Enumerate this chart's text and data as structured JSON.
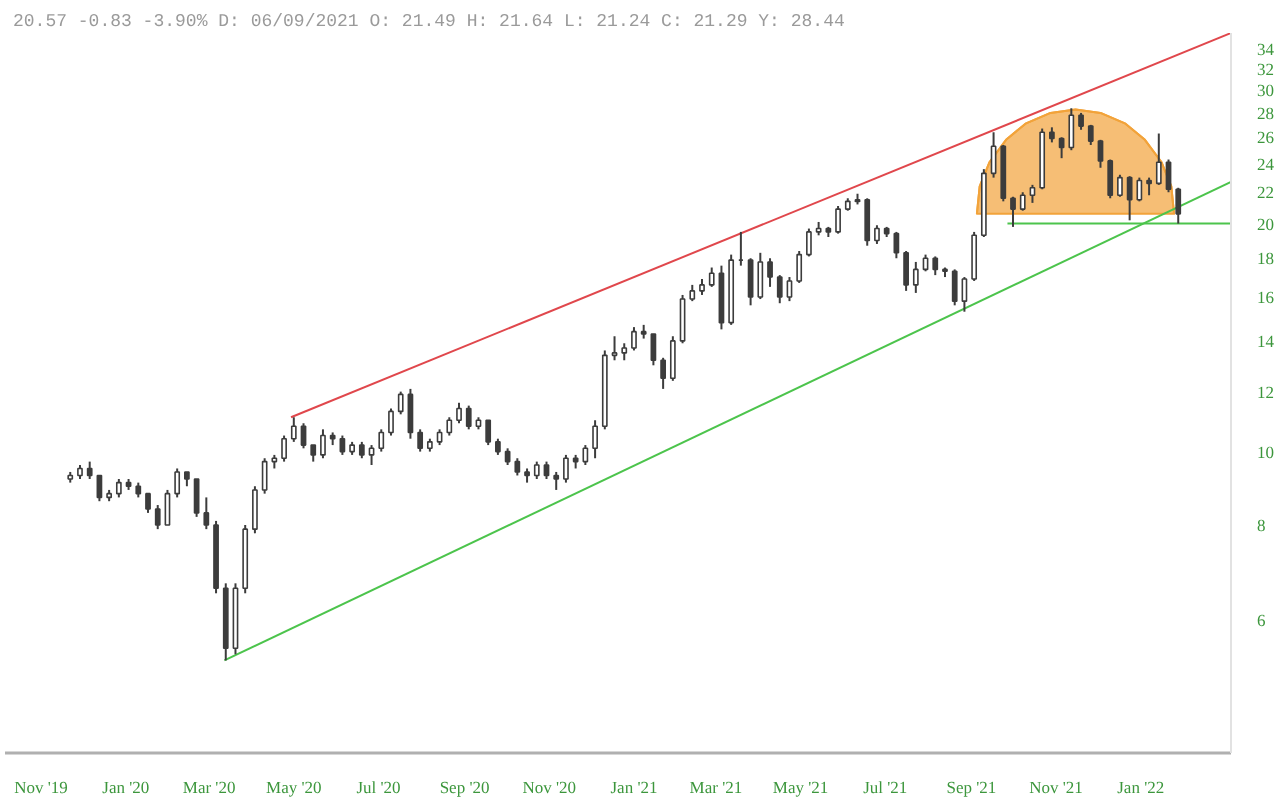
{
  "chart_data": {
    "type": "candlestick",
    "title": "20.57 -0.83 -3.90% D: 06/09/2021 O: 21.49 H: 21.64 L: 21.24 C: 21.29 Y: 28.44",
    "color": "#3c3c3c",
    "x": [
      "2019-11-22",
      "2019-11-29",
      "2019-12-06",
      "2019-12-13",
      "2019-12-20",
      "2019-12-27",
      "2020-01-03",
      "2020-01-10",
      "2020-01-17",
      "2020-01-24",
      "2020-01-31",
      "2020-02-07",
      "2020-02-14",
      "2020-02-21",
      "2020-02-28",
      "2020-03-06",
      "2020-03-13",
      "2020-03-20",
      "2020-03-27",
      "2020-04-03",
      "2020-04-10",
      "2020-04-17",
      "2020-04-24",
      "2020-05-01",
      "2020-05-08",
      "2020-05-15",
      "2020-05-22",
      "2020-05-29",
      "2020-06-05",
      "2020-06-12",
      "2020-06-19",
      "2020-06-26",
      "2020-07-03",
      "2020-07-10",
      "2020-07-17",
      "2020-07-24",
      "2020-07-31",
      "2020-08-07",
      "2020-08-14",
      "2020-08-21",
      "2020-08-28",
      "2020-09-04",
      "2020-09-11",
      "2020-09-18",
      "2020-09-25",
      "2020-10-02",
      "2020-10-09",
      "2020-10-16",
      "2020-10-23",
      "2020-10-30",
      "2020-11-06",
      "2020-11-13",
      "2020-11-20",
      "2020-11-27",
      "2020-12-04",
      "2020-12-11",
      "2020-12-18",
      "2020-12-25",
      "2021-01-01",
      "2021-01-08",
      "2021-01-15",
      "2021-01-22",
      "2021-01-29",
      "2021-02-05",
      "2021-02-12",
      "2021-02-19",
      "2021-02-26",
      "2021-03-05",
      "2021-03-12",
      "2021-03-19",
      "2021-03-26",
      "2021-04-02",
      "2021-04-09",
      "2021-04-16",
      "2021-04-23",
      "2021-04-30",
      "2021-05-07",
      "2021-05-14",
      "2021-05-21",
      "2021-05-28",
      "2021-06-04",
      "2021-06-11",
      "2021-06-18",
      "2021-06-25",
      "2021-07-02",
      "2021-07-09",
      "2021-07-16",
      "2021-07-23",
      "2021-07-30",
      "2021-08-06",
      "2021-08-13",
      "2021-08-20",
      "2021-08-27",
      "2021-09-03",
      "2021-09-10",
      "2021-09-17",
      "2021-09-24",
      "2021-10-01",
      "2021-10-08",
      "2021-10-15",
      "2021-10-22",
      "2021-10-29",
      "2021-11-05",
      "2021-11-12",
      "2021-11-19",
      "2021-11-26",
      "2021-12-03",
      "2021-12-10",
      "2021-12-17",
      "2021-12-24",
      "2021-12-31",
      "2022-01-07",
      "2022-01-14",
      "2022-01-21",
      "2022-01-28"
    ],
    "ohlc": [
      [
        9.2,
        9.4,
        9.1,
        9.3
      ],
      [
        9.3,
        9.6,
        9.2,
        9.5
      ],
      [
        9.5,
        9.7,
        9.2,
        9.3
      ],
      [
        9.3,
        9.3,
        8.6,
        8.7
      ],
      [
        8.7,
        8.9,
        8.6,
        8.8
      ],
      [
        8.8,
        9.2,
        8.7,
        9.1
      ],
      [
        9.1,
        9.2,
        8.9,
        9.0
      ],
      [
        9.0,
        9.1,
        8.7,
        8.8
      ],
      [
        8.8,
        8.8,
        8.3,
        8.4
      ],
      [
        8.4,
        8.5,
        7.9,
        8.0
      ],
      [
        8.0,
        8.9,
        8.0,
        8.8
      ],
      [
        8.8,
        9.5,
        8.7,
        9.4
      ],
      [
        9.4,
        9.4,
        9.0,
        9.2
      ],
      [
        9.2,
        9.2,
        8.2,
        8.3
      ],
      [
        8.3,
        8.7,
        7.9,
        8.0
      ],
      [
        8.0,
        8.1,
        6.5,
        6.6
      ],
      [
        6.6,
        6.7,
        5.3,
        5.5
      ],
      [
        5.5,
        6.7,
        5.4,
        6.6
      ],
      [
        6.6,
        8.0,
        6.5,
        7.9
      ],
      [
        7.9,
        9.0,
        7.8,
        8.9
      ],
      [
        8.9,
        9.8,
        8.8,
        9.7
      ],
      [
        9.7,
        9.9,
        9.5,
        9.8
      ],
      [
        9.8,
        10.5,
        9.7,
        10.4
      ],
      [
        10.4,
        11.1,
        10.3,
        10.8
      ],
      [
        10.8,
        10.9,
        10.1,
        10.2
      ],
      [
        10.2,
        10.2,
        9.7,
        9.9
      ],
      [
        9.9,
        10.7,
        9.8,
        10.5
      ],
      [
        10.5,
        10.6,
        10.2,
        10.4
      ],
      [
        10.4,
        10.5,
        9.9,
        10.0
      ],
      [
        10.0,
        10.3,
        9.9,
        10.2
      ],
      [
        10.2,
        10.3,
        9.8,
        9.9
      ],
      [
        9.9,
        10.2,
        9.6,
        10.1
      ],
      [
        10.1,
        10.7,
        10.0,
        10.6
      ],
      [
        10.6,
        11.4,
        10.5,
        11.3
      ],
      [
        11.3,
        12.0,
        11.2,
        11.9
      ],
      [
        11.9,
        12.1,
        10.4,
        10.6
      ],
      [
        10.6,
        10.7,
        10.0,
        10.1
      ],
      [
        10.1,
        10.4,
        10.0,
        10.3
      ],
      [
        10.3,
        10.7,
        10.2,
        10.6
      ],
      [
        10.6,
        11.1,
        10.5,
        11.0
      ],
      [
        11.0,
        11.6,
        10.9,
        11.4
      ],
      [
        11.4,
        11.5,
        10.7,
        10.8
      ],
      [
        10.8,
        11.1,
        10.7,
        11.0
      ],
      [
        11.0,
        11.0,
        10.2,
        10.3
      ],
      [
        10.3,
        10.4,
        9.9,
        10.0
      ],
      [
        10.0,
        10.1,
        9.6,
        9.7
      ],
      [
        9.7,
        9.8,
        9.3,
        9.4
      ],
      [
        9.4,
        9.5,
        9.1,
        9.3
      ],
      [
        9.3,
        9.7,
        9.2,
        9.6
      ],
      [
        9.6,
        9.7,
        9.2,
        9.3
      ],
      [
        9.3,
        9.4,
        8.9,
        9.2
      ],
      [
        9.2,
        9.9,
        9.1,
        9.8
      ],
      [
        9.8,
        9.9,
        9.5,
        9.7
      ],
      [
        9.7,
        10.2,
        9.6,
        10.1
      ],
      [
        10.1,
        11.0,
        9.8,
        10.8
      ],
      [
        10.8,
        13.6,
        10.7,
        13.4
      ],
      [
        13.4,
        14.2,
        13.2,
        13.5
      ],
      [
        13.5,
        13.9,
        13.2,
        13.7
      ],
      [
        13.7,
        14.6,
        13.6,
        14.4
      ],
      [
        14.4,
        14.7,
        14.1,
        14.3
      ],
      [
        14.3,
        14.3,
        13.0,
        13.2
      ],
      [
        13.2,
        13.3,
        12.1,
        12.5
      ],
      [
        12.5,
        14.2,
        12.4,
        14.0
      ],
      [
        14.0,
        16.1,
        13.9,
        15.9
      ],
      [
        15.9,
        16.6,
        15.8,
        16.3
      ],
      [
        16.3,
        16.9,
        16.1,
        16.6
      ],
      [
        16.6,
        17.5,
        16.5,
        17.2
      ],
      [
        17.2,
        17.6,
        14.5,
        14.8
      ],
      [
        14.8,
        18.2,
        14.7,
        17.9
      ],
      [
        17.9,
        19.5,
        17.6,
        17.9
      ],
      [
        17.9,
        18.0,
        15.6,
        16.0
      ],
      [
        16.0,
        18.3,
        15.9,
        17.8
      ],
      [
        17.8,
        18.0,
        16.5,
        17.0
      ],
      [
        17.0,
        17.1,
        15.7,
        16.0
      ],
      [
        16.0,
        17.0,
        15.8,
        16.8
      ],
      [
        16.8,
        18.4,
        16.7,
        18.2
      ],
      [
        18.2,
        19.7,
        18.1,
        19.5
      ],
      [
        19.5,
        20.1,
        19.3,
        19.7
      ],
      [
        19.7,
        19.8,
        19.2,
        19.5
      ],
      [
        19.5,
        21.1,
        19.4,
        20.9
      ],
      [
        20.9,
        21.6,
        20.8,
        21.4
      ],
      [
        21.4,
        21.9,
        21.2,
        21.5
      ],
      [
        21.5,
        21.6,
        18.7,
        19.0
      ],
      [
        19.0,
        19.9,
        18.8,
        19.7
      ],
      [
        19.7,
        19.8,
        19.2,
        19.4
      ],
      [
        19.4,
        19.5,
        18.0,
        18.3
      ],
      [
        18.3,
        18.4,
        16.3,
        16.6
      ],
      [
        16.6,
        17.8,
        16.2,
        17.4
      ],
      [
        17.4,
        18.2,
        17.3,
        18.0
      ],
      [
        18.0,
        18.1,
        17.1,
        17.4
      ],
      [
        17.4,
        17.5,
        17.0,
        17.3
      ],
      [
        17.3,
        17.4,
        15.6,
        15.8
      ],
      [
        15.8,
        17.0,
        15.3,
        16.9
      ],
      [
        16.9,
        19.5,
        16.8,
        19.3
      ],
      [
        19.3,
        23.6,
        19.2,
        23.3
      ],
      [
        23.3,
        26.4,
        23.0,
        25.3
      ],
      [
        25.3,
        25.4,
        21.4,
        21.6
      ],
      [
        21.6,
        21.7,
        19.8,
        20.9
      ],
      [
        20.9,
        22.0,
        20.8,
        21.8
      ],
      [
        21.8,
        22.5,
        21.3,
        22.3
      ],
      [
        22.3,
        26.7,
        22.2,
        26.4
      ],
      [
        26.4,
        26.8,
        25.6,
        25.9
      ],
      [
        25.9,
        26.0,
        24.4,
        25.2
      ],
      [
        25.2,
        28.4,
        25.0,
        27.8
      ],
      [
        27.8,
        28.0,
        26.6,
        26.9
      ],
      [
        26.9,
        27.0,
        25.4,
        25.7
      ],
      [
        25.7,
        25.8,
        23.7,
        24.2
      ],
      [
        24.2,
        24.3,
        21.6,
        21.8
      ],
      [
        21.8,
        23.2,
        21.7,
        23.0
      ],
      [
        23.0,
        23.1,
        20.2,
        21.5
      ],
      [
        21.5,
        23.0,
        21.4,
        22.8
      ],
      [
        22.8,
        23.0,
        21.8,
        22.6
      ],
      [
        22.6,
        26.3,
        22.5,
        24.1
      ],
      [
        24.1,
        24.3,
        22.0,
        22.2
      ],
      [
        22.2,
        22.3,
        20.0,
        20.6
      ]
    ],
    "series": [
      {
        "type": "line",
        "color": "#f2a33a",
        "x": [
          "2021-09-05",
          "2021-09-07",
          "2021-09-14",
          "2021-09-26",
          "2021-10-10",
          "2021-10-28",
          "2021-11-15",
          "2021-12-03",
          "2021-12-21",
          "2022-01-04",
          "2022-01-16",
          "2022-01-23",
          "2022-01-25"
        ],
        "values": [
          20.6,
          22.4,
          24.1,
          25.8,
          27.1,
          28.0,
          28.3,
          28.0,
          27.1,
          25.8,
          24.1,
          22.4,
          20.6
        ],
        "lower": [
          20.6,
          20.6,
          20.6,
          20.6,
          20.6,
          20.6,
          20.6,
          20.6,
          20.6,
          20.6,
          20.6,
          20.6,
          20.6
        ],
        "upper": [
          20.6,
          22.4,
          24.1,
          25.8,
          27.1,
          28.0,
          28.3,
          28.0,
          27.1,
          25.8,
          24.1,
          22.4,
          20.6
        ]
      },
      {
        "type": "line",
        "color": "#e0474c",
        "x": [
          "2020-04-29",
          "2022-03-07"
        ],
        "values": [
          11.1,
          35.7
        ]
      },
      {
        "type": "line",
        "color": "#4cc44c",
        "x": [
          "2020-03-12",
          "2022-03-07"
        ],
        "values": [
          5.3,
          22.7
        ]
      },
      {
        "type": "line",
        "color": "#4cc44c",
        "x": [
          "2021-09-27",
          "2022-03-07"
        ],
        "values": [
          20.0,
          20.0
        ]
      }
    ],
    "xlim": [
      "2019-10-06",
      "2022-03-07"
    ],
    "xticks": [
      {
        "value": "2019-11-01",
        "label": "Nov '19"
      },
      {
        "value": "2020-01-01",
        "label": "Jan '20"
      },
      {
        "value": "2020-03-01",
        "label": "Mar '20"
      },
      {
        "value": "2020-05-01",
        "label": "May '20"
      },
      {
        "value": "2020-07-01",
        "label": "Jul '20"
      },
      {
        "value": "2020-09-01",
        "label": "Sep '20"
      },
      {
        "value": "2020-11-01",
        "label": "Nov '20"
      },
      {
        "value": "2021-01-01",
        "label": "Jan '21"
      },
      {
        "value": "2021-03-01",
        "label": "Mar '21"
      },
      {
        "value": "2021-05-01",
        "label": "May '21"
      },
      {
        "value": "2021-07-01",
        "label": "Jul '21"
      },
      {
        "value": "2021-09-01",
        "label": "Sep '21"
      },
      {
        "value": "2021-11-01",
        "label": "Nov '21"
      },
      {
        "value": "2022-01-01",
        "label": "Jan '22"
      }
    ],
    "ylim": [
      4.0,
      35.7
    ],
    "yticks": [
      6,
      8,
      10,
      12,
      14,
      16,
      18,
      20,
      22,
      24,
      26,
      28,
      30,
      32,
      34
    ],
    "log": true
  }
}
